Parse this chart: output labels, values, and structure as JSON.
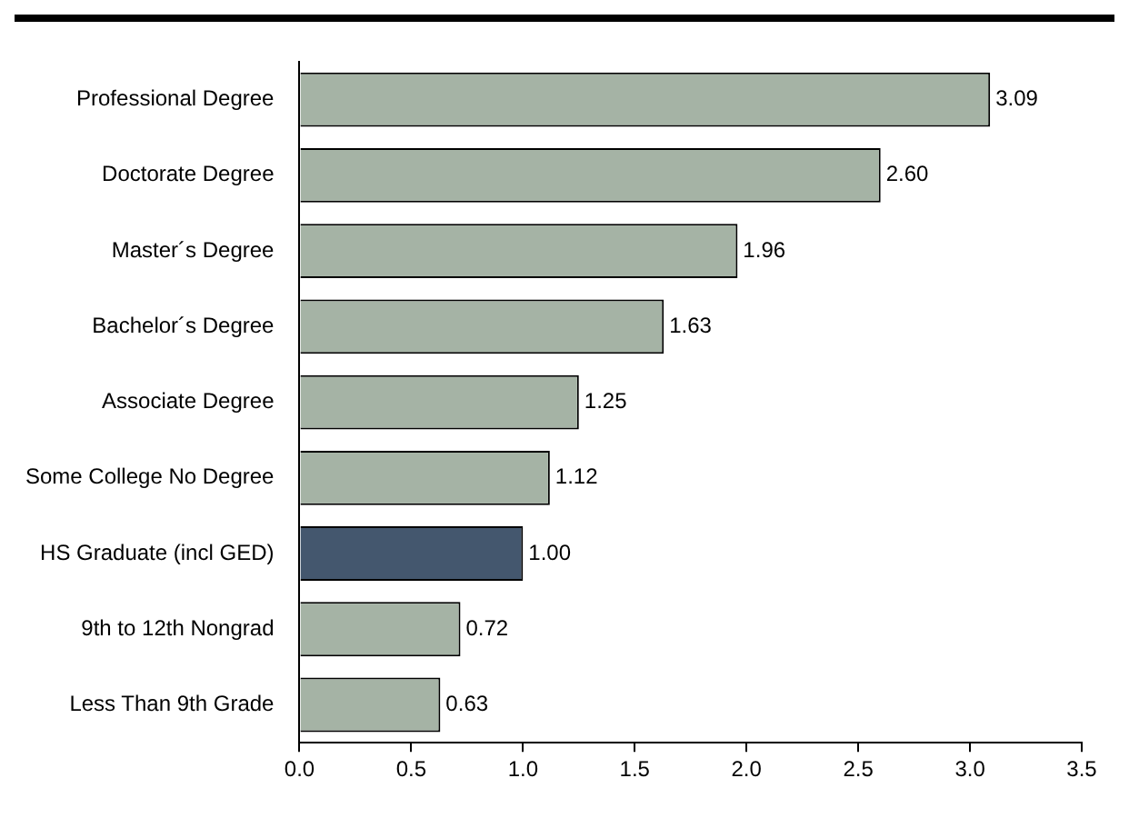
{
  "chart_data": {
    "type": "bar",
    "orientation": "horizontal",
    "categories": [
      "Professional Degree",
      "Doctorate Degree",
      "Master´s Degree",
      "Bachelor´s Degree",
      "Associate Degree",
      "Some College No Degree",
      "HS Graduate (incl GED)",
      "9th to 12th Nongrad",
      "Less Than 9th Grade"
    ],
    "values": [
      3.09,
      2.6,
      1.96,
      1.63,
      1.25,
      1.12,
      1.0,
      0.72,
      0.63
    ],
    "value_labels": [
      "3.09",
      "2.60",
      "1.96",
      "1.63",
      "1.25",
      "1.12",
      "1.00",
      "0.72",
      "0.63"
    ],
    "colors": [
      "#a5b3a5",
      "#a5b3a5",
      "#a5b3a5",
      "#a5b3a5",
      "#a5b3a5",
      "#a5b3a5",
      "#44576e",
      "#a5b3a5",
      "#a5b3a5"
    ],
    "xlim": [
      0,
      3.5
    ],
    "xticks": [
      {
        "value": 0,
        "label": "0.0"
      },
      {
        "value": 0.5,
        "label": "0.5"
      },
      {
        "value": 1,
        "label": "1.0"
      },
      {
        "value": 1.5,
        "label": "1.5"
      },
      {
        "value": 2,
        "label": "2.0"
      },
      {
        "value": 2.5,
        "label": "2.5"
      },
      {
        "value": 3,
        "label": "3.0"
      },
      {
        "value": 3.5,
        "label": "3.5"
      }
    ],
    "grid": false,
    "legend": false
  }
}
